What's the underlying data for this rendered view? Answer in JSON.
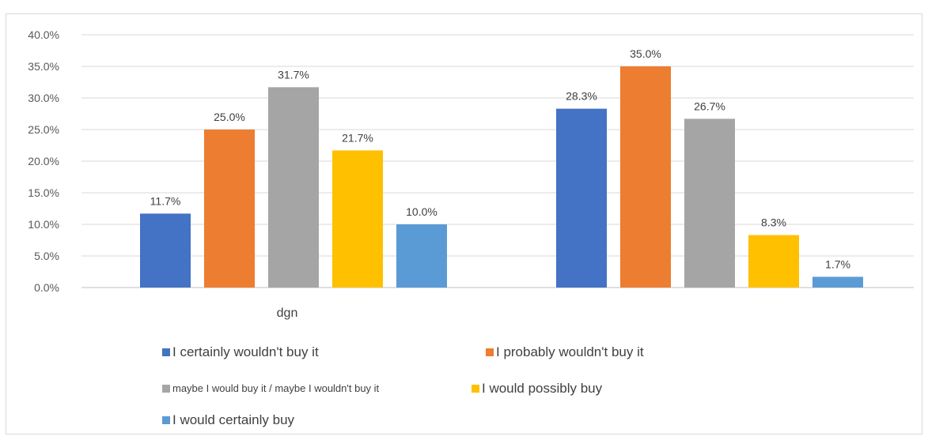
{
  "chart_data": {
    "type": "bar",
    "categories": [
      "dgn",
      ""
    ],
    "series": [
      {
        "name": "I certainly wouldn't buy it",
        "color": "#4472C4",
        "values": [
          11.7,
          28.3
        ]
      },
      {
        "name": "I probably wouldn't buy it",
        "color": "#ED7D31",
        "values": [
          25.0,
          35.0
        ]
      },
      {
        "name": "maybe I would buy it / maybe I wouldn't buy it",
        "color": "#A5A5A5",
        "values": [
          31.7,
          26.7
        ]
      },
      {
        "name": "I would possibly buy",
        "color": "#FFC000",
        "values": [
          21.7,
          8.3
        ]
      },
      {
        "name": "I would certainly buy",
        "color": "#5B9BD5",
        "values": [
          10.0,
          1.7
        ]
      }
    ],
    "data_labels": [
      [
        "11.7%",
        "28.3%"
      ],
      [
        "25.0%",
        "35.0%"
      ],
      [
        "31.7%",
        "26.7%"
      ],
      [
        "21.7%",
        "8.3%"
      ],
      [
        "10.0%",
        "1.7%"
      ]
    ],
    "y_ticks": [
      "0.0%",
      "5.0%",
      "10.0%",
      "15.0%",
      "20.0%",
      "25.0%",
      "30.0%",
      "35.0%",
      "40.0%"
    ],
    "ylim": [
      0,
      40
    ],
    "title": "",
    "xlabel": "",
    "ylabel": "",
    "grid": true,
    "legend_position": "bottom"
  }
}
